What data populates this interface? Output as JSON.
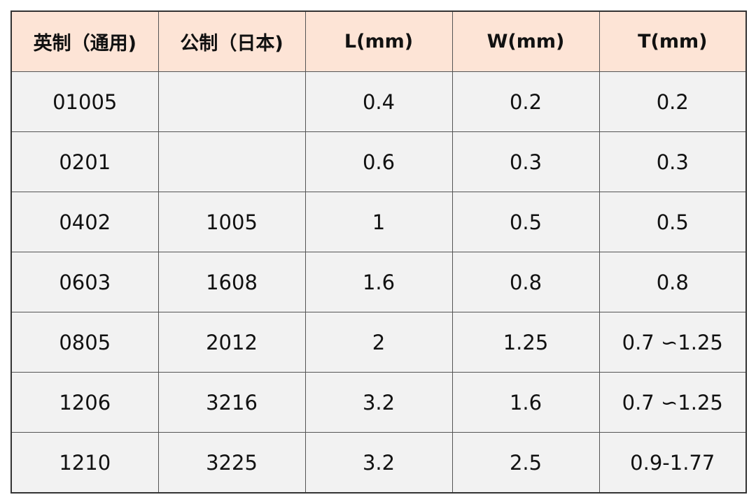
{
  "table": {
    "headers": [
      "英制（通用)",
      "公制（日本)",
      "L(mm)",
      "W(mm)",
      "T(mm)"
    ],
    "rows": [
      [
        "01005",
        "",
        "0.4",
        "0.2",
        "0.2"
      ],
      [
        "0201",
        "",
        "0.6",
        "0.3",
        "0.3"
      ],
      [
        "0402",
        "1005",
        "1",
        "0.5",
        "0.5"
      ],
      [
        "0603",
        "1608",
        "1.6",
        "0.8",
        "0.8"
      ],
      [
        "0805",
        "2012",
        "2",
        "1.25",
        "0.7 ∽1.25"
      ],
      [
        "1206",
        "3216",
        "3.2",
        "1.6",
        "0.7 ∽1.25"
      ],
      [
        "1210",
        "3225",
        "3.2",
        "2.5",
        "0.9-1.77"
      ]
    ]
  },
  "colors": {
    "header_bg": "#fde4d6",
    "cell_bg": "#f2f2f2",
    "border": "#555555"
  }
}
